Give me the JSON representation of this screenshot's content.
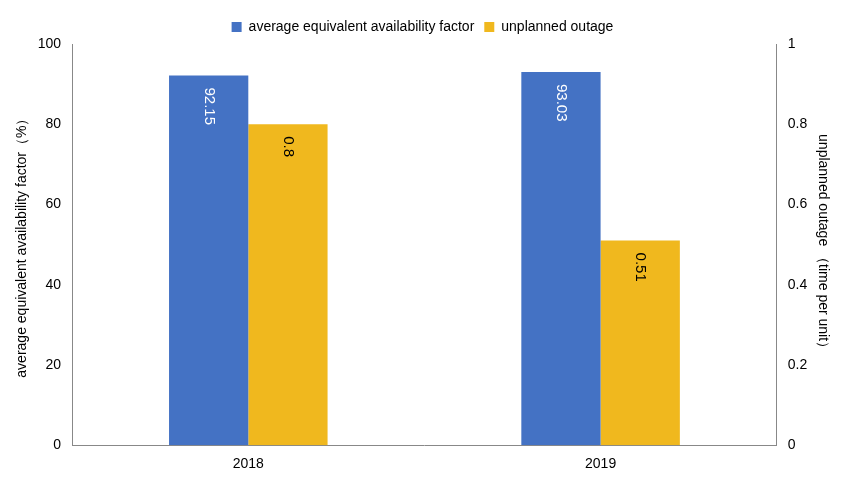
{
  "chart_data": {
    "type": "bar",
    "categories": [
      "2018",
      "2019"
    ],
    "series": [
      {
        "name": "average equivalent availability factor",
        "color": "#4472c4",
        "values": [
          92.15,
          93.03
        ]
      },
      {
        "name": "unplanned outage",
        "color": "#f0b81e",
        "values": [
          0.8,
          0.51
        ],
        "axis": "y2"
      }
    ],
    "y_label": "average equivalent availability factor（%）",
    "y2_label": "unplanned outage （time per unit）",
    "ylim": [
      0,
      100
    ],
    "yticks": [
      0,
      20,
      40,
      60,
      80,
      100
    ],
    "y2lim": [
      0,
      1
    ],
    "y2ticks": [
      0,
      0.2,
      0.4,
      0.6,
      0.8,
      1
    ],
    "grid": false,
    "legend": "top",
    "data_labels": true
  }
}
